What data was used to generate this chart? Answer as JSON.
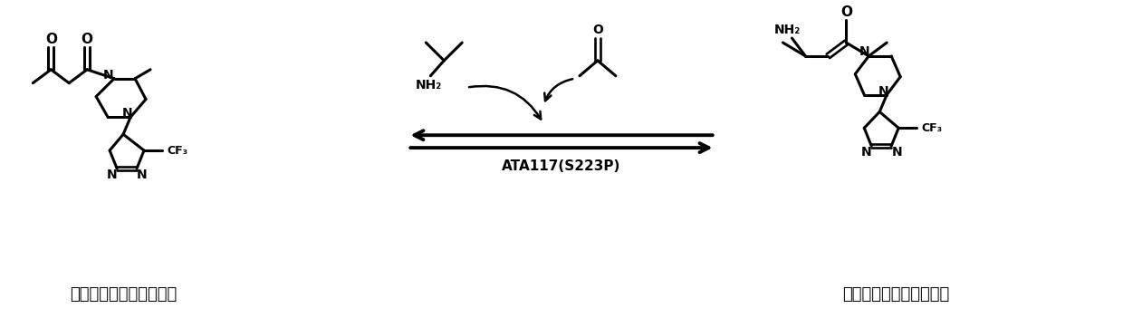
{
  "background_color": "#ffffff",
  "figure_width": 12.4,
  "figure_height": 3.51,
  "dpi": 100,
  "enzyme_label": "ATA117(S223P)",
  "left_label": "西他列汀前体酶截短底物",
  "right_label": "西他列汀前体酶截短产物",
  "line_width": 2.2,
  "bond_color": "#000000",
  "text_color": "#000000"
}
